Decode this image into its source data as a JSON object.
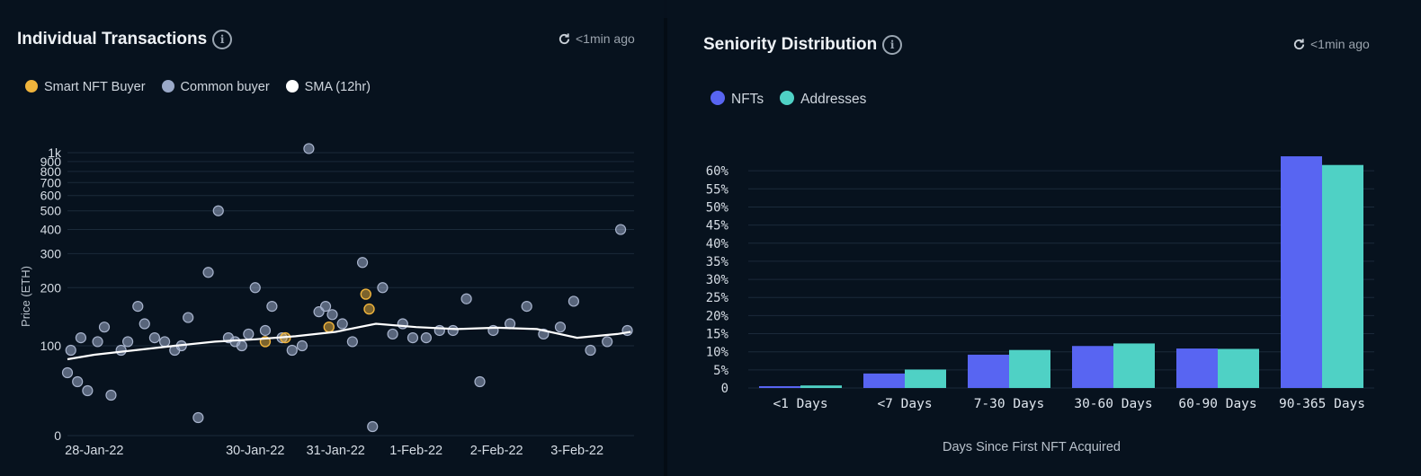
{
  "left_panel": {
    "title": "Individual Transactions",
    "updated": "<1min ago",
    "legend": [
      {
        "label": "Smart NFT Buyer",
        "color": "#f0b43c"
      },
      {
        "label": "Common buyer",
        "color": "#9aa9c8"
      },
      {
        "label": "SMA (12hr)",
        "color": "#ffffff"
      }
    ]
  },
  "right_panel": {
    "title": "Seniority Distribution",
    "updated": "<1min ago",
    "legend": [
      {
        "label": "NFTs",
        "color": "#5865f2"
      },
      {
        "label": "Addresses",
        "color": "#4fd1c5"
      }
    ]
  },
  "chart_data": [
    {
      "type": "scatter",
      "title": "Individual Transactions",
      "ylabel": "Price (ETH)",
      "y_ticks": [
        "0",
        "100",
        "200",
        "300",
        "400",
        "500",
        "600",
        "700",
        "800",
        "900",
        "1k"
      ],
      "x_ticks": [
        "28-Jan-22",
        "30-Jan-22",
        "31-Jan-22",
        "1-Feb-22",
        "2-Feb-22",
        "3-Feb-22"
      ],
      "grid": true,
      "series": [
        {
          "name": "Common buyer",
          "x": [
            "27-Jan-22 16:00",
            "27-Jan-22 17:00",
            "27-Jan-22 19:00",
            "27-Jan-22 20:00",
            "27-Jan-22 22:00",
            "28-Jan-22 01:00",
            "28-Jan-22 03:00",
            "28-Jan-22 05:00",
            "28-Jan-22 08:00",
            "28-Jan-22 10:00",
            "28-Jan-22 13:00",
            "28-Jan-22 15:00",
            "28-Jan-22 18:00",
            "28-Jan-22 21:00",
            "29-Jan-22 00:00",
            "29-Jan-22 02:00",
            "29-Jan-22 04:00",
            "29-Jan-22 07:00",
            "29-Jan-22 10:00",
            "29-Jan-22 13:00",
            "29-Jan-22 16:00",
            "29-Jan-22 18:00",
            "29-Jan-22 20:00",
            "29-Jan-22 22:00",
            "30-Jan-22 00:00",
            "30-Jan-22 03:00",
            "30-Jan-22 05:00",
            "30-Jan-22 08:00",
            "30-Jan-22 11:00",
            "30-Jan-22 14:00",
            "30-Jan-22 16:00",
            "30-Jan-22 19:00",
            "30-Jan-22 21:00",
            "30-Jan-22 23:00",
            "31-Jan-22 02:00",
            "31-Jan-22 05:00",
            "31-Jan-22 08:00",
            "31-Jan-22 11:00",
            "31-Jan-22 14:00",
            "31-Jan-22 17:00",
            "31-Jan-22 20:00",
            "31-Jan-22 23:00",
            "1-Feb-22 03:00",
            "1-Feb-22 07:00",
            "1-Feb-22 11:00",
            "1-Feb-22 15:00",
            "1-Feb-22 19:00",
            "1-Feb-22 23:00",
            "2-Feb-22 04:00",
            "2-Feb-22 09:00",
            "2-Feb-22 14:00",
            "2-Feb-22 19:00",
            "2-Feb-22 23:00",
            "3-Feb-22 04:00",
            "3-Feb-22 09:00",
            "3-Feb-22 13:00",
            "3-Feb-22 15:00"
          ],
          "y": [
            70,
            95,
            60,
            110,
            50,
            105,
            125,
            45,
            95,
            105,
            160,
            130,
            110,
            105,
            95,
            100,
            140,
            20,
            240,
            500,
            110,
            105,
            100,
            115,
            200,
            120,
            160,
            110,
            95,
            100,
            1050,
            150,
            160,
            145,
            130,
            105,
            270,
            10,
            200,
            115,
            130,
            110,
            110,
            120,
            120,
            175,
            60,
            120,
            130,
            160,
            115,
            125,
            170,
            95,
            105,
            400,
            120
          ]
        },
        {
          "name": "Smart NFT Buyer",
          "x": [
            "30-Jan-22 03:00",
            "30-Jan-22 09:00",
            "30-Jan-22 22:00",
            "31-Jan-22 09:00",
            "31-Jan-22 10:00"
          ],
          "y": [
            105,
            110,
            125,
            185,
            155
          ]
        },
        {
          "name": "SMA (12hr)",
          "x": [
            "27-Jan-22 16:00",
            "28-Jan-22 00:00",
            "28-Jan-22 12:00",
            "29-Jan-22 00:00",
            "29-Jan-22 12:00",
            "30-Jan-22 00:00",
            "30-Jan-22 12:00",
            "31-Jan-22 00:00",
            "31-Jan-22 12:00",
            "1-Feb-22 00:00",
            "1-Feb-22 12:00",
            "2-Feb-22 00:00",
            "2-Feb-22 12:00",
            "3-Feb-22 00:00",
            "3-Feb-22 12:00",
            "3-Feb-22 16:00"
          ],
          "y": [
            85,
            90,
            95,
            100,
            105,
            108,
            112,
            118,
            130,
            125,
            122,
            124,
            122,
            110,
            115,
            118
          ]
        }
      ]
    },
    {
      "type": "bar",
      "title": "Seniority Distribution",
      "xlabel": "Days Since First NFT Acquired",
      "categories": [
        "<1 Days",
        "<7 Days",
        "7-30 Days",
        "30-60 Days",
        "60-90 Days",
        "90-365 Days"
      ],
      "series": [
        {
          "name": "NFTs",
          "values": [
            0.5,
            4.0,
            9.2,
            11.6,
            10.9,
            64.0
          ]
        },
        {
          "name": "Addresses",
          "values": [
            0.7,
            5.1,
            10.5,
            12.3,
            10.8,
            61.6
          ]
        }
      ],
      "y_ticks": [
        "0",
        "5%",
        "10%",
        "15%",
        "20%",
        "25%",
        "30%",
        "35%",
        "40%",
        "45%",
        "50%",
        "55%",
        "60%"
      ],
      "ylim": [
        0,
        65
      ],
      "grid": true
    }
  ]
}
